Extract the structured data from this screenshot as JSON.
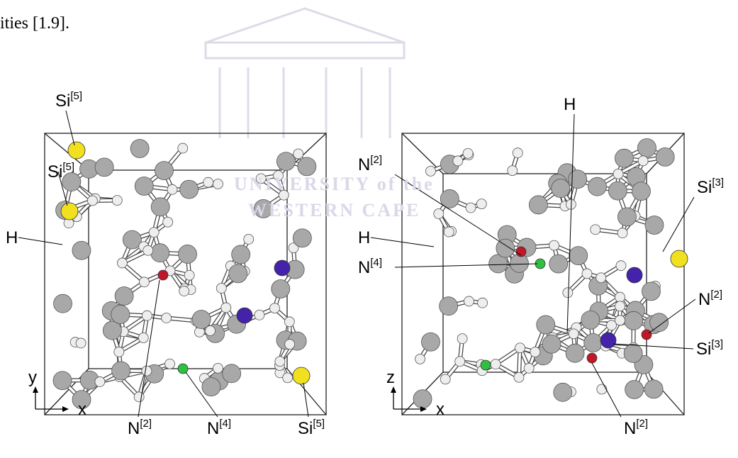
{
  "text_fragment": "ities [1.9].",
  "watermark": [
    "UNIVERSITY of the",
    "WESTERN CAPE"
  ],
  "panels": [
    {
      "axes": [
        "y",
        "x"
      ],
      "labels": [
        {
          "base": "Si",
          "sup": "[5]"
        },
        {
          "base": "Si",
          "sup": "[5]"
        },
        {
          "base": "H"
        },
        {
          "base": "N",
          "sup": "[2]"
        },
        {
          "base": "N",
          "sup": "[4]"
        },
        {
          "base": "Si",
          "sup": "[5]"
        }
      ]
    },
    {
      "axes": [
        "z",
        "x"
      ],
      "labels": [
        {
          "base": "H"
        },
        {
          "base": "N",
          "sup": "[2]"
        },
        {
          "base": "H"
        },
        {
          "base": "N",
          "sup": "[4]"
        },
        {
          "base": "Si",
          "sup": "[3]"
        },
        {
          "base": "N",
          "sup": "[2]"
        },
        {
          "base": "Si",
          "sup": "[3]"
        },
        {
          "base": "N",
          "sup": "[2]"
        }
      ]
    }
  ]
}
